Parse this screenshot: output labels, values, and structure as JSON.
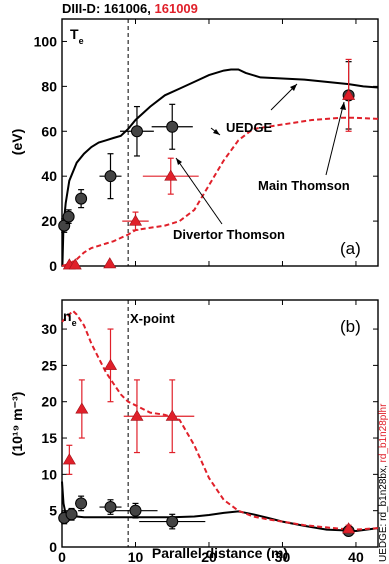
{
  "header": {
    "prefix": "DIII-D: ",
    "shot_black": "161006",
    "sep": ", ",
    "shot_red": "161009"
  },
  "side_note": {
    "black": "UEDGE: rd_b1n28bx, ",
    "red": "rd_b1n28plhr"
  },
  "colors": {
    "shot_161006": "#000000",
    "shot_161009": "#e0202a"
  },
  "chart_data": [
    {
      "type": "line",
      "panel_label": "(a)",
      "quantity_main": "T",
      "quantity_sub": "e",
      "ylabel": "(eV)",
      "xlim": [
        0,
        43
      ],
      "ylim": [
        0,
        110
      ],
      "yticks": [
        0,
        20,
        40,
        60,
        80,
        100
      ],
      "xticks": [
        0,
        10,
        20,
        30,
        40
      ],
      "xticklabels": [
        "",
        "",
        "",
        "",
        ""
      ],
      "vline_x": 9,
      "vline_label": "",
      "annotations": {
        "uedge": "UEDGE",
        "main_thomson": "Main Thomson",
        "divertor_thomson": "Divertor Thomson"
      },
      "series": [
        {
          "kind": "uedge-line",
          "shot": "161006",
          "x": [
            0.05,
            0.2,
            0.5,
            1,
            2,
            3,
            4,
            5,
            6,
            7,
            8,
            9,
            10,
            12,
            14,
            16,
            18,
            20,
            22,
            23,
            24,
            25,
            27,
            30,
            33,
            36,
            39,
            41,
            43
          ],
          "y": [
            0,
            18,
            28,
            38,
            46,
            50,
            53,
            55,
            56,
            57,
            58,
            61,
            65,
            71,
            76,
            79,
            82,
            85,
            87,
            87.5,
            87.5,
            86,
            84,
            83.5,
            83,
            82,
            81,
            80,
            79.5
          ]
        },
        {
          "kind": "uedge-line",
          "shot": "161009",
          "x": [
            0,
            1,
            2,
            3,
            4,
            5,
            6,
            7,
            8,
            9,
            10,
            12,
            14,
            16,
            18,
            20,
            22,
            24,
            26,
            30,
            34,
            38,
            40,
            43
          ],
          "y": [
            0,
            1,
            3,
            6,
            8,
            9,
            10,
            11,
            12.5,
            14,
            16,
            17,
            18,
            20,
            25,
            36,
            47,
            56,
            61,
            63,
            65,
            66,
            66,
            65.5
          ]
        },
        {
          "kind": "thomson-points",
          "shot": "161006",
          "x": [
            0.3,
            0.9,
            2.6,
            6.6,
            10.2,
            15.0,
            39
          ],
          "y": [
            18,
            22,
            30,
            40,
            60,
            62,
            76
          ],
          "yerr": [
            3,
            3,
            4,
            10,
            11,
            10,
            15
          ],
          "xerr": [
            0.4,
            0.5,
            0.7,
            1.5,
            2.3,
            2.8,
            0
          ]
        },
        {
          "kind": "thomson-points",
          "shot": "161009",
          "x": [
            1.0,
            1.8,
            6.5,
            10.0,
            14.8,
            39
          ],
          "y": [
            0.5,
            0.5,
            1,
            20,
            40,
            76
          ],
          "yerr": [
            0,
            0,
            0,
            4,
            8,
            16
          ],
          "xerr": [
            0,
            0,
            0,
            1.8,
            3.8,
            0
          ]
        }
      ]
    },
    {
      "type": "line",
      "panel_label": "(b)",
      "quantity_main": "n",
      "quantity_sub": "e",
      "ylabel": "(10¹⁹ m⁻³)",
      "xlabel": "Parallel distance (m)",
      "xlim": [
        0,
        43
      ],
      "ylim": [
        0,
        34
      ],
      "yticks": [
        0,
        5,
        10,
        15,
        20,
        25,
        30
      ],
      "xticks": [
        0,
        10,
        20,
        30,
        40
      ],
      "xticklabels": [
        "0",
        "10",
        "20",
        "30",
        "40"
      ],
      "vline_x": 9,
      "vline_label": "X-point",
      "series": [
        {
          "kind": "uedge-line",
          "shot": "161006",
          "x": [
            0,
            0.2,
            0.5,
            1,
            1.5,
            2,
            3,
            5,
            8,
            10,
            12,
            15,
            18,
            20,
            22,
            24,
            26,
            28,
            30,
            33,
            36,
            38,
            40,
            43
          ],
          "y": [
            9,
            6,
            4.5,
            4.2,
            4.2,
            4.2,
            4.1,
            4.1,
            4.1,
            4.1,
            4.1,
            4.1,
            4.2,
            4.4,
            4.7,
            4.9,
            4.5,
            4.0,
            3.5,
            2.9,
            2.4,
            2.3,
            2.2,
            2.6
          ]
        },
        {
          "kind": "uedge-line",
          "shot": "161009",
          "x": [
            0,
            0.5,
            1,
            1.5,
            2,
            3,
            4,
            5,
            6,
            7,
            8,
            9,
            10,
            12,
            14,
            16,
            18,
            20,
            22,
            24,
            26,
            28,
            30,
            33,
            36,
            38,
            40,
            43
          ],
          "y": [
            31,
            31.5,
            32,
            32.5,
            32,
            30.5,
            28,
            26,
            24,
            22.5,
            21,
            20,
            19.5,
            18.5,
            18.2,
            17.5,
            14,
            9.5,
            6.5,
            5,
            4.2,
            3.8,
            3.5,
            3,
            2.7,
            2.5,
            2.4,
            2.6
          ]
        },
        {
          "kind": "thomson-points",
          "shot": "161006",
          "x": [
            0.3,
            1.3,
            2.6,
            6.6,
            10.0,
            15.0,
            39
          ],
          "y": [
            4,
            4.5,
            6,
            5.5,
            5,
            3.5,
            2.2
          ],
          "yerr": [
            0.8,
            0.8,
            1,
            1,
            1,
            1,
            0.5
          ],
          "xerr": [
            0.4,
            0.6,
            0.8,
            1.5,
            3.0,
            4.5,
            0
          ]
        },
        {
          "kind": "thomson-points",
          "shot": "161009",
          "x": [
            1.0,
            2.7,
            6.6,
            10.2,
            15.0,
            39
          ],
          "y": [
            12,
            19,
            25,
            18,
            18,
            2.5
          ],
          "yerr": [
            2,
            4,
            5,
            5,
            5,
            0.5
          ],
          "xerr": [
            0,
            0,
            0,
            1.8,
            3.0,
            0
          ]
        }
      ]
    }
  ]
}
